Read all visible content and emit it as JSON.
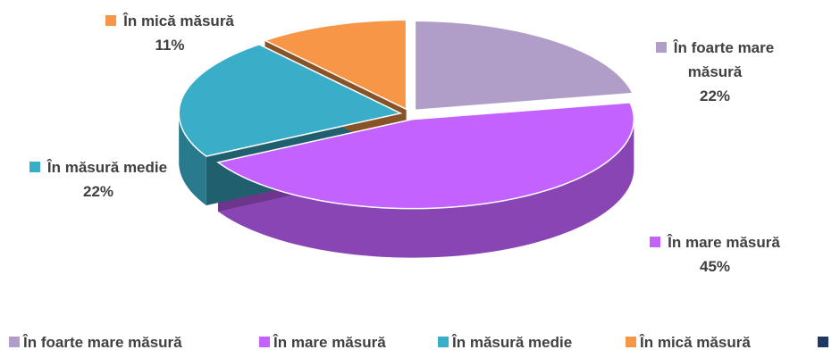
{
  "chart_data": {
    "type": "pie",
    "categories": [
      "În foarte mare măsură",
      "În mare măsură",
      "În măsură medie",
      "În mică măsură",
      null
    ],
    "values": [
      22,
      45,
      22,
      11,
      0
    ],
    "value_labels": [
      "22%",
      "45%",
      "22%",
      "11%",
      null
    ],
    "colors": [
      "#b09ec8",
      "#c462ff",
      "#3aaec8",
      "#f79646",
      "#1f3864"
    ],
    "legend": "bottom"
  }
}
